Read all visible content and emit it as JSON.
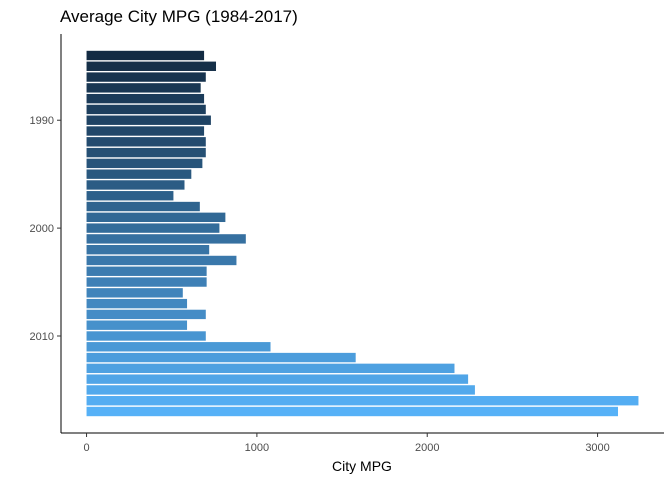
{
  "chart_data": {
    "type": "bar",
    "orientation": "horizontal",
    "title": "Average City MPG (1984-2017)",
    "xlabel": "City MPG",
    "ylabel": "",
    "years": [
      1984,
      1985,
      1986,
      1987,
      1988,
      1989,
      1990,
      1991,
      1992,
      1993,
      1994,
      1995,
      1996,
      1997,
      1998,
      1999,
      2000,
      2001,
      2002,
      2003,
      2004,
      2005,
      2006,
      2007,
      2008,
      2009,
      2010,
      2011,
      2012,
      2013,
      2014,
      2015,
      2016,
      2017
    ],
    "values": [
      690,
      760,
      700,
      670,
      690,
      700,
      730,
      690,
      700,
      700,
      680,
      615,
      575,
      510,
      665,
      815,
      780,
      935,
      720,
      880,
      705,
      705,
      565,
      590,
      700,
      590,
      700,
      1080,
      1580,
      2160,
      2240,
      2280,
      3240,
      3120
    ],
    "xlim": [
      -150,
      3390
    ],
    "x_ticks": [
      0,
      1000,
      2000,
      3000
    ],
    "x_tick_labels": [
      "0",
      "1000",
      "2000",
      "3000"
    ],
    "y_ticks": [
      1990,
      2000,
      2010
    ],
    "y_tick_labels": [
      "1990",
      "2000",
      "2010"
    ],
    "color_low": "#132b43",
    "color_high": "#56b1f7",
    "grid": false,
    "legend": "none"
  }
}
